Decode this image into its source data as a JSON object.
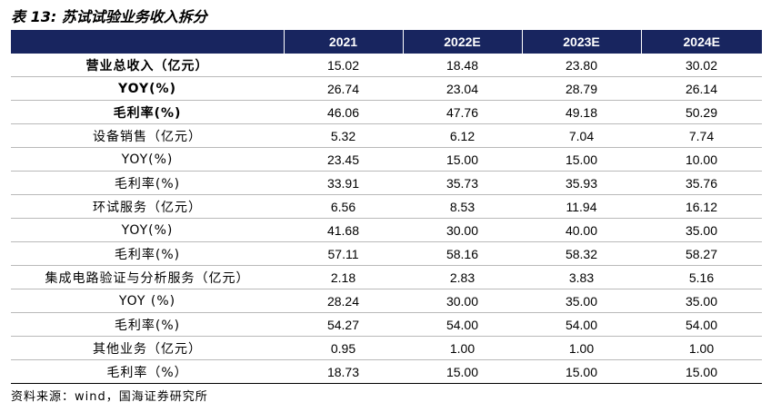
{
  "title": "表 13:  苏试试验业务收入拆分",
  "table": {
    "headers": [
      "",
      "2021",
      "2022E",
      "2023E",
      "2024E"
    ],
    "rows": [
      {
        "label": "营业总收入（亿元）",
        "values": [
          "15.02",
          "18.48",
          "23.80",
          "30.02"
        ],
        "bold": true
      },
      {
        "label": "YOY(%)",
        "values": [
          "26.74",
          "23.04",
          "28.79",
          "26.14"
        ],
        "bold": true
      },
      {
        "label": "毛利率(%)",
        "values": [
          "46.06",
          "47.76",
          "49.18",
          "50.29"
        ],
        "bold": true
      },
      {
        "label": "设备销售（亿元）",
        "values": [
          "5.32",
          "6.12",
          "7.04",
          "7.74"
        ],
        "bold": false
      },
      {
        "label": "YOY(%)",
        "values": [
          "23.45",
          "15.00",
          "15.00",
          "10.00"
        ],
        "bold": false
      },
      {
        "label": "毛利率(%)",
        "values": [
          "33.91",
          "35.73",
          "35.93",
          "35.76"
        ],
        "bold": false
      },
      {
        "label": "环试服务（亿元）",
        "values": [
          "6.56",
          "8.53",
          "11.94",
          "16.12"
        ],
        "bold": false
      },
      {
        "label": "YOY(%)",
        "values": [
          "41.68",
          "30.00",
          "40.00",
          "35.00"
        ],
        "bold": false
      },
      {
        "label": "毛利率(%)",
        "values": [
          "57.11",
          "58.16",
          "58.32",
          "58.27"
        ],
        "bold": false
      },
      {
        "label": "集成电路验证与分析服务（亿元）",
        "values": [
          "2.18",
          "2.83",
          "3.83",
          "5.16"
        ],
        "bold": false
      },
      {
        "label": "YOY (%)",
        "values": [
          "28.24",
          "30.00",
          "35.00",
          "35.00"
        ],
        "bold": false
      },
      {
        "label": "毛利率(%)",
        "values": [
          "54.27",
          "54.00",
          "54.00",
          "54.00"
        ],
        "bold": false
      },
      {
        "label": "其他业务（亿元）",
        "values": [
          "0.95",
          "1.00",
          "1.00",
          "1.00"
        ],
        "bold": false
      },
      {
        "label": "毛利率（%）",
        "values": [
          "18.73",
          "15.00",
          "15.00",
          "15.00"
        ],
        "bold": false
      }
    ]
  },
  "source": "资料来源：wind，国海证券研究所",
  "colors": {
    "header_bg": "#18255f",
    "header_text": "#ffffff"
  }
}
